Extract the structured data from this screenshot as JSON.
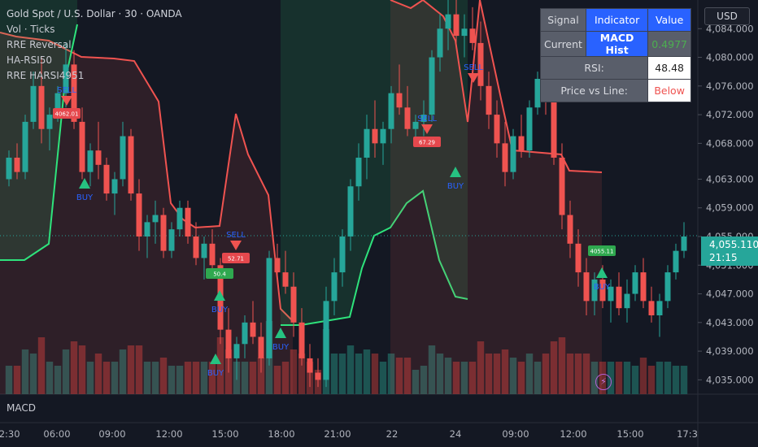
{
  "legend": {
    "title": "Gold Spot / U.S. Dollar · 30 · OANDA",
    "indicators": [
      "Vol · Ticks",
      "RRE Reversal",
      "HA-RSI50",
      "RRE HARSI4951"
    ]
  },
  "table": {
    "headers": [
      "Signal",
      "Indicator",
      "Value"
    ],
    "rows": [
      {
        "label": "Current",
        "indicator": "MACD Hist",
        "value": "0.4977"
      },
      {
        "label": "RSI:",
        "value": "48.48"
      },
      {
        "label": "Price vs Line:",
        "value": "Below"
      }
    ]
  },
  "macd_label": "MACD",
  "currency": "USD",
  "last_price": "4,055.110",
  "countdown": "21:15",
  "colors": {
    "up": "#26a69a",
    "down": "#ef5350",
    "line_red": "#f05350",
    "line_green": "#2ee37c",
    "background": "#141823"
  },
  "chart_data": {
    "type": "candlestick",
    "y_ticks": [
      "4,084.000",
      "4,080.000",
      "4,076.000",
      "4,072.000",
      "4,068.000",
      "4,063.000",
      "4,059.000",
      "4,055.000",
      "4,051.000",
      "4,047.000",
      "4,043.000",
      "4,039.000",
      "4,035.000"
    ],
    "ylim": [
      4033,
      4088
    ],
    "x_ticks": [
      "02:30",
      "06:00",
      "09:00",
      "12:00",
      "15:00",
      "18:00",
      "21:00",
      "22",
      "24",
      "09:00",
      "12:00",
      "15:00",
      "17:3"
    ],
    "signals": [
      {
        "type": "SELL",
        "price": "4062.01"
      },
      {
        "type": "BUY",
        "price": ""
      },
      {
        "type": "SELL",
        "price": "52.71"
      },
      {
        "type": "BUY",
        "price": "50.4"
      },
      {
        "type": "BUY",
        "price": ""
      },
      {
        "type": "BUY",
        "price": ""
      },
      {
        "type": "SELL",
        "price": "67.29"
      },
      {
        "type": "BUY",
        "price": ""
      },
      {
        "type": "SELL",
        "price": ""
      },
      {
        "type": "BUY",
        "price": "4055.11"
      }
    ],
    "candles": [
      [
        4063,
        4067,
        4062,
        4066
      ],
      [
        4066,
        4068,
        4063,
        4064
      ],
      [
        4064,
        4072,
        4063,
        4071
      ],
      [
        4071,
        4078,
        4070,
        4076
      ],
      [
        4076,
        4080,
        4068,
        4070
      ],
      [
        4070,
        4073,
        4067,
        4072
      ],
      [
        4072,
        4076,
        4071,
        4075
      ],
      [
        4075,
        4082,
        4073,
        4079
      ],
      [
        4079,
        4081,
        4070,
        4071
      ],
      [
        4071,
        4073,
        4063,
        4064
      ],
      [
        4064,
        4068,
        4062,
        4067
      ],
      [
        4067,
        4071,
        4063,
        4065
      ],
      [
        4065,
        4066,
        4060,
        4061
      ],
      [
        4061,
        4064,
        4058,
        4063
      ],
      [
        4063,
        4071,
        4062,
        4069
      ],
      [
        4069,
        4070,
        4060,
        4061
      ],
      [
        4061,
        4063,
        4053,
        4055
      ],
      [
        4055,
        4058,
        4052,
        4057
      ],
      [
        4057,
        4060,
        4054,
        4058
      ],
      [
        4058,
        4059,
        4052,
        4053
      ],
      [
        4053,
        4057,
        4052,
        4056
      ],
      [
        4056,
        4060,
        4055,
        4059
      ],
      [
        4059,
        4060,
        4054,
        4055
      ],
      [
        4055,
        4057,
        4051,
        4052
      ],
      [
        4052,
        4055,
        4049,
        4054
      ],
      [
        4054,
        4056,
        4050,
        4051
      ],
      [
        4051,
        4052,
        4040,
        4042
      ],
      [
        4042,
        4045,
        4036,
        4038
      ],
      [
        4038,
        4041,
        4035,
        4040
      ],
      [
        4040,
        4044,
        4038,
        4043
      ],
      [
        4043,
        4046,
        4040,
        4041
      ],
      [
        4041,
        4043,
        4036,
        4038
      ],
      [
        4038,
        4053,
        4037,
        4052
      ],
      [
        4052,
        4054,
        4049,
        4050
      ],
      [
        4050,
        4053,
        4047,
        4048
      ],
      [
        4048,
        4050,
        4041,
        4043
      ],
      [
        4043,
        4045,
        4037,
        4038
      ],
      [
        4038,
        4040,
        4034,
        4036
      ],
      [
        4036,
        4038,
        4034,
        4035
      ],
      [
        4035,
        4048,
        4034,
        4046
      ],
      [
        4046,
        4052,
        4044,
        4050
      ],
      [
        4050,
        4056,
        4048,
        4055
      ],
      [
        4055,
        4063,
        4053,
        4062
      ],
      [
        4062,
        4068,
        4060,
        4066
      ],
      [
        4066,
        4072,
        4063,
        4070
      ],
      [
        4070,
        4074,
        4066,
        4068
      ],
      [
        4068,
        4071,
        4065,
        4070
      ],
      [
        4070,
        4076,
        4068,
        4075
      ],
      [
        4075,
        4079,
        4072,
        4073
      ],
      [
        4073,
        4076,
        4069,
        4070
      ],
      [
        4070,
        4072,
        4068,
        4071
      ],
      [
        4071,
        4074,
        4069,
        4072
      ],
      [
        4072,
        4081,
        4071,
        4080
      ],
      [
        4080,
        4086,
        4078,
        4084
      ],
      [
        4084,
        4088,
        4081,
        4086
      ],
      [
        4086,
        4088,
        4082,
        4083
      ],
      [
        4083,
        4086,
        4080,
        4084
      ],
      [
        4084,
        4087,
        4081,
        4082
      ],
      [
        4082,
        4085,
        4074,
        4076
      ],
      [
        4076,
        4078,
        4070,
        4072
      ],
      [
        4072,
        4074,
        4066,
        4068
      ],
      [
        4068,
        4071,
        4062,
        4064
      ],
      [
        4064,
        4070,
        4063,
        4069
      ],
      [
        4069,
        4072,
        4066,
        4067
      ],
      [
        4067,
        4074,
        4066,
        4073
      ],
      [
        4073,
        4078,
        4072,
        4077
      ],
      [
        4077,
        4080,
        4072,
        4074
      ],
      [
        4074,
        4076,
        4065,
        4066
      ],
      [
        4066,
        4068,
        4056,
        4058
      ],
      [
        4058,
        4060,
        4052,
        4054
      ],
      [
        4054,
        4056,
        4048,
        4050
      ],
      [
        4050,
        4052,
        4044,
        4046
      ],
      [
        4046,
        4050,
        4044,
        4049
      ],
      [
        4049,
        4051,
        4045,
        4046
      ],
      [
        4046,
        4049,
        4043,
        4048
      ],
      [
        4048,
        4050,
        4044,
        4045
      ],
      [
        4045,
        4049,
        4043,
        4047
      ],
      [
        4047,
        4051,
        4046,
        4050
      ],
      [
        4050,
        4052,
        4045,
        4046
      ],
      [
        4046,
        4048,
        4043,
        4044
      ],
      [
        4044,
        4047,
        4041,
        4046
      ],
      [
        4046,
        4051,
        4045,
        4050
      ],
      [
        4050,
        4054,
        4049,
        4053
      ],
      [
        4053,
        4057,
        4052,
        4055
      ]
    ]
  }
}
